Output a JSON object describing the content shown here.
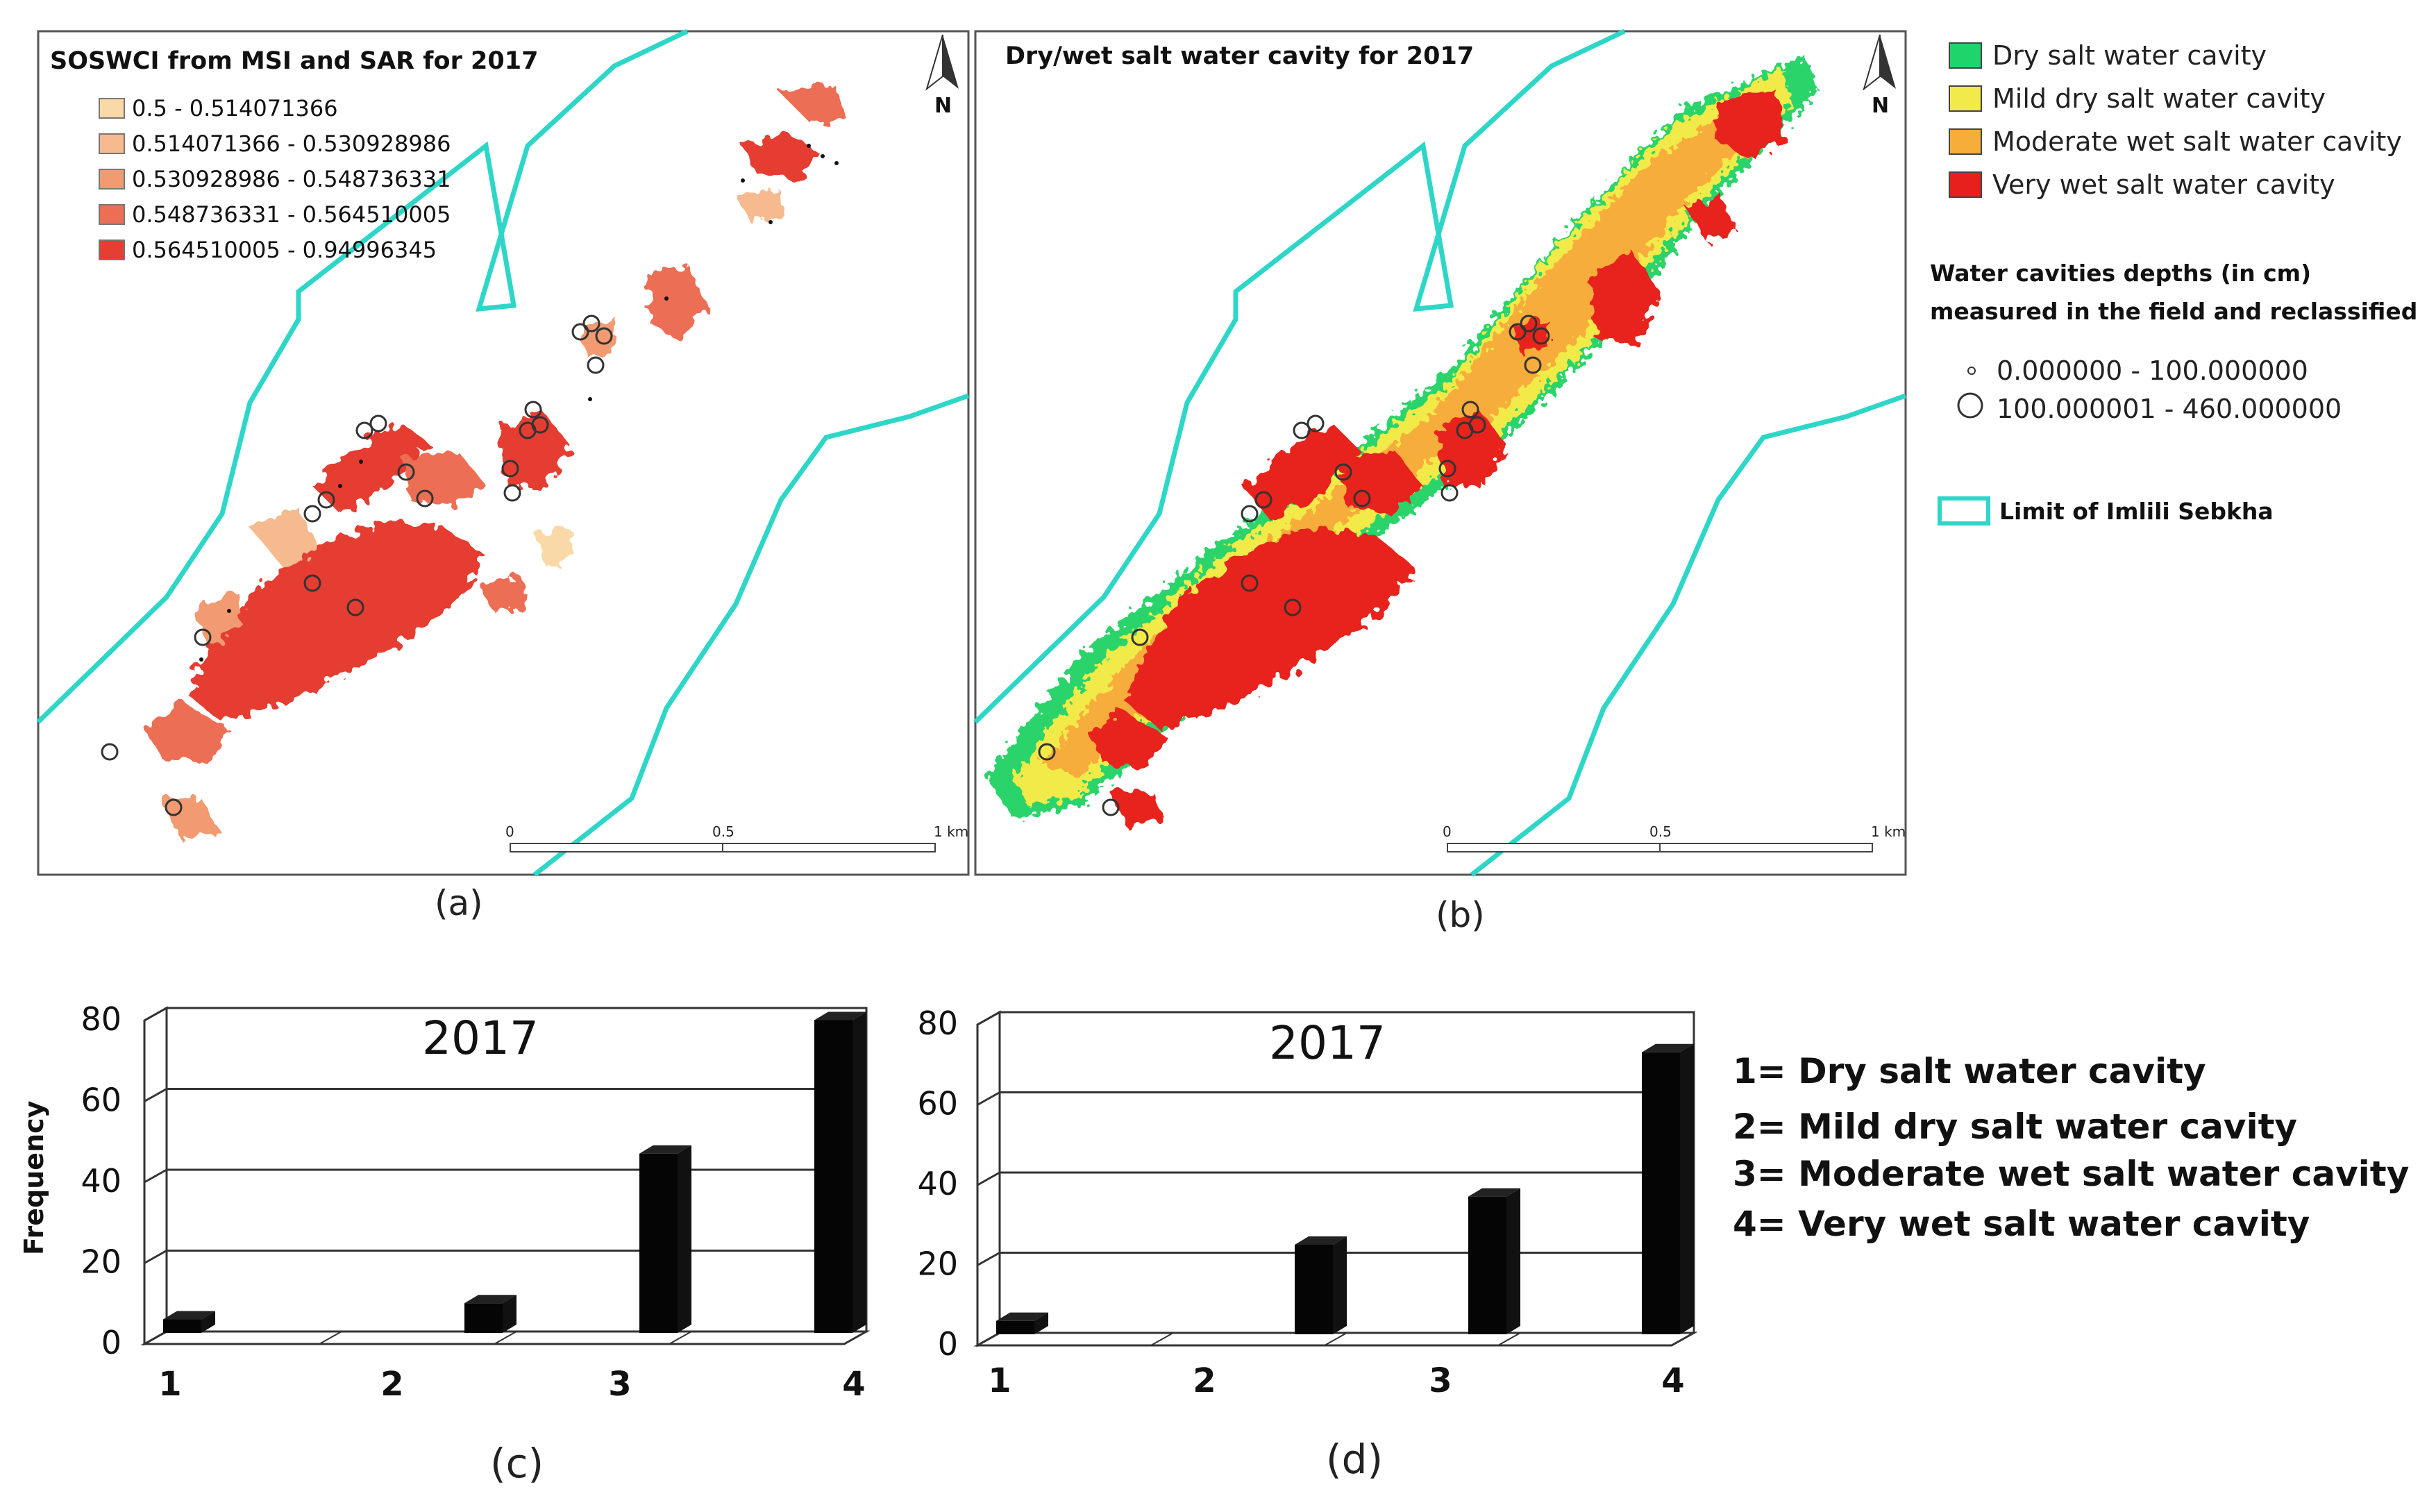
{
  "panel_a": {
    "title": "SOSWCI from MSI and SAR for 2017",
    "caption": "(a)",
    "north": "N",
    "legend": [
      {
        "label": "0.5 - 0.514071366",
        "color": "#f9d9a8"
      },
      {
        "label": "0.514071366 - 0.530928986",
        "color": "#f7b98e"
      },
      {
        "label": "0.530928986 - 0.548736331",
        "color": "#f29a72"
      },
      {
        "label": "0.548736331 - 0.564510005",
        "color": "#ec6e55"
      },
      {
        "label": "0.564510005 - 0.94996345",
        "color": "#e53e33"
      }
    ],
    "scale": [
      "0",
      "0.5",
      "1 km"
    ]
  },
  "panel_b": {
    "title": "Dry/wet salt water cavity for 2017",
    "caption": "(b)",
    "north": "N",
    "scale": [
      "0",
      "0.5",
      "1 km"
    ]
  },
  "legend_right": {
    "classes": [
      {
        "label": "Dry salt water cavity",
        "color": "#1fd46a"
      },
      {
        "label": "Mild dry salt water cavity",
        "color": "#f2ea4a"
      },
      {
        "label": "Moderate wet salt water cavity",
        "color": "#f7ad3a"
      },
      {
        "label": "Very wet salt water cavity",
        "color": "#e8201d"
      }
    ],
    "depth_title_1": "Water cavities depths  (in cm)",
    "depth_title_2": "measured in the field and reclassified",
    "depth_classes": [
      "0.000000 - 100.000000",
      "100.000001 - 460.000000"
    ],
    "boundary_label": "Limit of Imlili Sebkha",
    "boundary_color": "#2ed6c8"
  },
  "chart_data": [
    {
      "type": "bar",
      "title": "2017",
      "caption": "(c)",
      "ylabel": "Frequency",
      "xlabel": "",
      "categories": [
        "1",
        "2",
        "3",
        "4"
      ],
      "values": [
        3,
        7,
        44,
        77
      ],
      "ylim": [
        0,
        80
      ],
      "yticks": [
        "0",
        "20",
        "40",
        "60",
        "80"
      ]
    },
    {
      "type": "bar",
      "title": "2017",
      "caption": "(d)",
      "ylabel": "",
      "xlabel": "",
      "categories": [
        "1",
        "2",
        "3",
        "4"
      ],
      "values": [
        3,
        22,
        34,
        70
      ],
      "ylim": [
        0,
        80
      ],
      "yticks": [
        "0",
        "20",
        "40",
        "60",
        "80"
      ]
    }
  ],
  "class_key": [
    "1= Dry salt water cavity",
    "2= Mild dry salt water cavity",
    "3= Moderate wet salt water cavity",
    "4= Very wet salt water cavity"
  ]
}
